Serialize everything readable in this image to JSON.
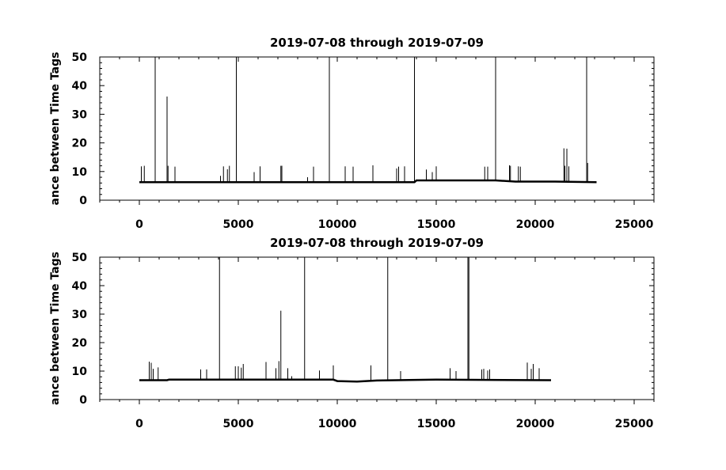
{
  "chart_data": [
    {
      "type": "line",
      "title": "2019-07-08 through 2019-07-09",
      "ylabel": "ance between Time Tags",
      "xlabel": "",
      "xlim": [
        -2000,
        26000
      ],
      "ylim": [
        0,
        50
      ],
      "xticks": [
        0,
        5000,
        10000,
        15000,
        20000,
        25000
      ],
      "yticks": [
        0,
        10,
        20,
        30,
        40,
        50
      ],
      "grid": false,
      "series": [
        {
          "baseline": [
            [
              0,
              6.3
            ],
            [
              13900,
              6.3
            ],
            [
              14000,
              6.9
            ],
            [
              18000,
              6.9
            ],
            [
              19000,
              6.5
            ],
            [
              21000,
              6.5
            ],
            [
              23100,
              6.3
            ]
          ],
          "spikes": [
            [
              100,
              11.8
            ],
            [
              250,
              12.0
            ],
            [
              800,
              50
            ],
            [
              1400,
              36.2
            ],
            [
              1450,
              12
            ],
            [
              1800,
              11.7
            ],
            [
              4100,
              8.5
            ],
            [
              4250,
              11.8
            ],
            [
              4450,
              10.8
            ],
            [
              4550,
              12.0
            ],
            [
              4900,
              50
            ],
            [
              5800,
              9.8
            ],
            [
              6100,
              11.8
            ],
            [
              7150,
              12.0
            ],
            [
              7200,
              12.0
            ],
            [
              8500,
              8.0
            ],
            [
              8800,
              11.7
            ],
            [
              9600,
              50
            ],
            [
              10400,
              11.8
            ],
            [
              10800,
              11.7
            ],
            [
              11800,
              12.2
            ],
            [
              13000,
              11.1
            ],
            [
              13100,
              11.7
            ],
            [
              13400,
              11.8
            ],
            [
              13900,
              50
            ],
            [
              14500,
              10.7
            ],
            [
              14800,
              9.8
            ],
            [
              15000,
              11.8
            ],
            [
              17450,
              11.7
            ],
            [
              17600,
              11.7
            ],
            [
              18000,
              50
            ],
            [
              18700,
              12.2
            ],
            [
              18750,
              12.0
            ],
            [
              19150,
              11.8
            ],
            [
              19250,
              11.7
            ],
            [
              21450,
              18.1
            ],
            [
              21500,
              12.0
            ],
            [
              21600,
              18.0
            ],
            [
              21700,
              11.8
            ],
            [
              22600,
              50
            ],
            [
              22650,
              13.0
            ]
          ]
        }
      ]
    },
    {
      "type": "line",
      "title": "2019-07-08 through 2019-07-09",
      "ylabel": "ance between Time Tags",
      "xlabel": "",
      "xlim": [
        -2000,
        26000
      ],
      "ylim": [
        0,
        50
      ],
      "xticks": [
        0,
        5000,
        10000,
        15000,
        20000,
        25000
      ],
      "yticks": [
        0,
        10,
        20,
        30,
        40,
        50
      ],
      "grid": false,
      "series": [
        {
          "baseline": [
            [
              0,
              6.8
            ],
            [
              1400,
              6.8
            ],
            [
              1500,
              7.0
            ],
            [
              9800,
              7.0
            ],
            [
              10000,
              6.5
            ],
            [
              11000,
              6.3
            ],
            [
              12000,
              6.7
            ],
            [
              15000,
              7.0
            ],
            [
              20800,
              6.8
            ]
          ],
          "spikes": [
            [
              500,
              13.3
            ],
            [
              600,
              12.9
            ],
            [
              700,
              10.8
            ],
            [
              950,
              11.3
            ],
            [
              3100,
              10.6
            ],
            [
              3400,
              10.6
            ],
            [
              4050,
              50
            ],
            [
              4850,
              11.7
            ],
            [
              5000,
              11.7
            ],
            [
              5150,
              11.2
            ],
            [
              5250,
              12.5
            ],
            [
              6400,
              13.2
            ],
            [
              6900,
              11.0
            ],
            [
              7050,
              13.5
            ],
            [
              7150,
              31.2
            ],
            [
              7500,
              11.0
            ],
            [
              7700,
              8.2
            ],
            [
              8350,
              50
            ],
            [
              9100,
              10.2
            ],
            [
              9800,
              12.0
            ],
            [
              11700,
              12.0
            ],
            [
              12550,
              50
            ],
            [
              13200,
              10.0
            ],
            [
              15700,
              11.0
            ],
            [
              16000,
              10.0
            ],
            [
              16600,
              50
            ],
            [
              16650,
              50
            ],
            [
              17300,
              10.6
            ],
            [
              17400,
              10.8
            ],
            [
              17600,
              10.2
            ],
            [
              17700,
              10.6
            ],
            [
              19600,
              13.0
            ],
            [
              19800,
              10.8
            ],
            [
              19900,
              12.5
            ],
            [
              20200,
              11.0
            ]
          ]
        }
      ]
    }
  ]
}
